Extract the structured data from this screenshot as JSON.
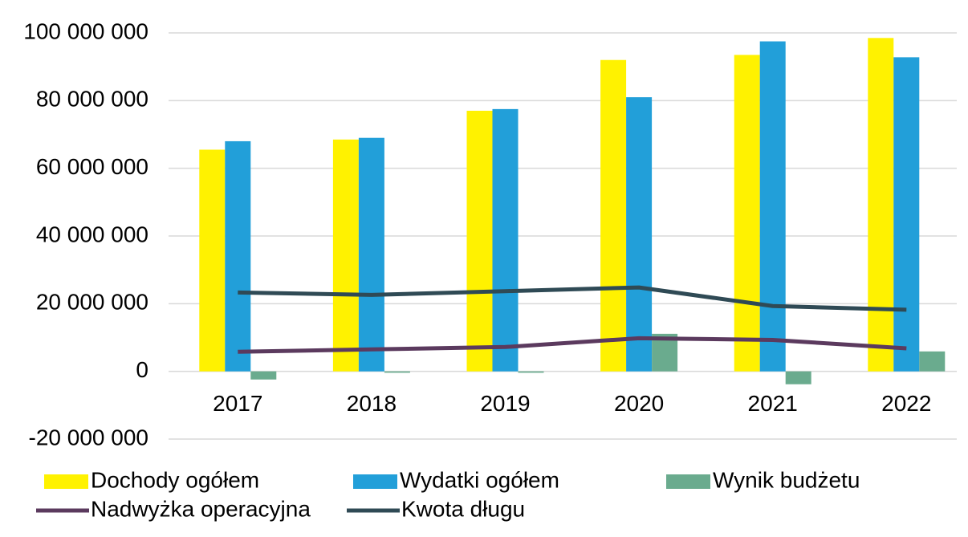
{
  "chart_data": {
    "type": "bar",
    "categories": [
      "2017",
      "2018",
      "2019",
      "2020",
      "2021",
      "2022"
    ],
    "series": [
      {
        "name": "Dochody ogółem",
        "type": "bar",
        "color": "#FFF200",
        "values": [
          65500000,
          68500000,
          77000000,
          92000000,
          93500000,
          98500000
        ]
      },
      {
        "name": "Wydatki ogółem",
        "type": "bar",
        "color": "#229FD9",
        "values": [
          68000000,
          69000000,
          77500000,
          81000000,
          97500000,
          92800000
        ]
      },
      {
        "name": "Wynik budżetu",
        "type": "bar",
        "color": "#6AAB8E",
        "values": [
          -2400000,
          -400000,
          -400000,
          11100000,
          -3800000,
          5900000
        ]
      },
      {
        "name": "Nadwyżka operacyjna",
        "type": "line",
        "color": "#5B3A5E",
        "values": [
          5800000,
          6500000,
          7200000,
          9800000,
          9300000,
          6800000
        ]
      },
      {
        "name": "Kwota długu",
        "type": "line",
        "color": "#2F4A55",
        "values": [
          23300000,
          22600000,
          23700000,
          24800000,
          19300000,
          18200000
        ]
      }
    ],
    "ylim": [
      -20000000,
      100000000
    ],
    "yticks": [
      {
        "value": -20000000,
        "label": "-20 000 000"
      },
      0,
      {
        "value": 20000000,
        "label": "20 000 000"
      },
      {
        "value": 40000000,
        "label": "40 000 000"
      },
      {
        "value": 60000000,
        "label": "60 000 000"
      },
      {
        "value": 80000000,
        "label": "80 000 000"
      },
      {
        "value": 100000000,
        "label": "100 000 000"
      }
    ],
    "grid": true,
    "legend": "bottom"
  }
}
